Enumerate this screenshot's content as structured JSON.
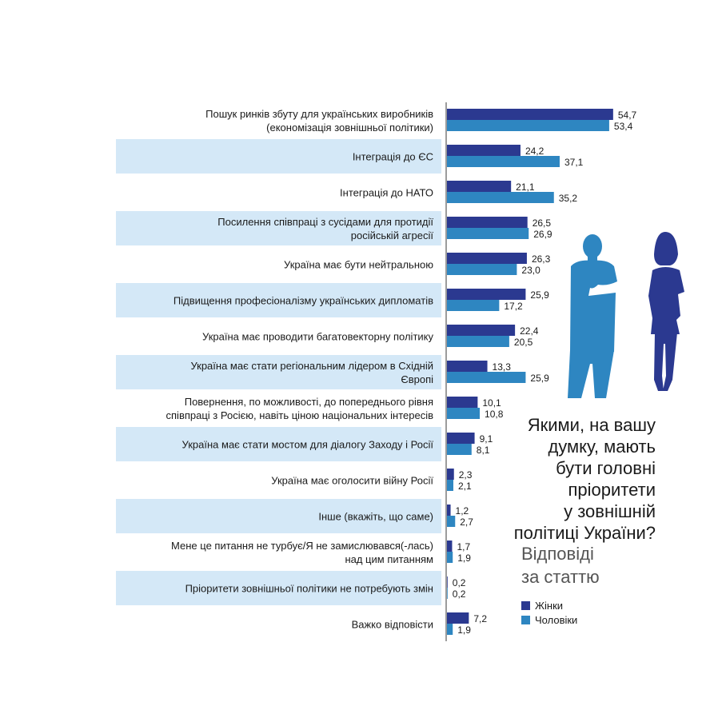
{
  "colors": {
    "women": "#2B3990",
    "men": "#2E86C1",
    "band": "#D4E8F7",
    "axis": "#5a5a5a"
  },
  "question": "Якими, на вашу\nдумку, мають\nбути головні\nпріоритети\nу зовнішній\nполітиці України?",
  "subtitle": "Відповіді\nза статтю",
  "legend": {
    "women": "Жінки",
    "men": "Чоловіки"
  },
  "icons": [
    "man-silhouette-icon",
    "woman-silhouette-icon"
  ],
  "chart_data": {
    "type": "bar",
    "orientation": "horizontal",
    "categories": [
      [
        "Пошук ринків збуту для українських виробників",
        "(економізація зовнішньої політики)"
      ],
      [
        "Інтеграція до ЄС"
      ],
      [
        "Інтеграція до НАТО"
      ],
      [
        "Посилення співпраці з сусідами для протидії",
        "російській агресії"
      ],
      [
        "Україна має бути нейтральною"
      ],
      [
        "Підвищення професіоналізму українських дипломатів"
      ],
      [
        "Україна має проводити багатовекторну політику"
      ],
      [
        "Україна має стати регіональним лідером в Східній",
        "Європі"
      ],
      [
        "Повернення, по можливості, до попереднього рівня",
        "співпраці з Росією, навіть ціною національних інтересів"
      ],
      [
        "Україна має стати мостом для діалогу Заходу і Росії"
      ],
      [
        "Україна має оголосити війну Росії"
      ],
      [
        "Інше (вкажіть, що саме)"
      ],
      [
        "Мене це питання не турбує/Я не замислювався(-лась)",
        "над цим питанням"
      ],
      [
        "Пріоритети зовнішньої політики не потребують змін"
      ],
      [
        "Важко відповісти"
      ]
    ],
    "series": [
      {
        "name": "Жінки",
        "values": [
          54.7,
          24.2,
          21.1,
          26.5,
          26.3,
          25.9,
          22.4,
          13.3,
          10.1,
          9.1,
          2.3,
          1.2,
          1.7,
          0.2,
          7.2
        ],
        "labels": [
          "54,7",
          "24,2",
          "21,1",
          "26,5",
          "26,3",
          "25,9",
          "22,4",
          "13,3",
          "10,1",
          "9,1",
          "2,3",
          "1,2",
          "1,7",
          "0,2",
          "7,2"
        ]
      },
      {
        "name": "Чоловіки",
        "values": [
          53.4,
          37.1,
          35.2,
          26.9,
          23.0,
          17.2,
          20.5,
          25.9,
          10.8,
          8.1,
          2.1,
          2.7,
          1.9,
          0.2,
          1.9
        ],
        "labels": [
          "53,4",
          "37,1",
          "35,2",
          "26,9",
          "23,0",
          "17,2",
          "20,5",
          "25,9",
          "10,8",
          "8,1",
          "2,1",
          "2,7",
          "1,9",
          "0,2",
          "1,9"
        ]
      }
    ],
    "shaded_rows": [
      1,
      3,
      5,
      7,
      9,
      11,
      13
    ]
  }
}
